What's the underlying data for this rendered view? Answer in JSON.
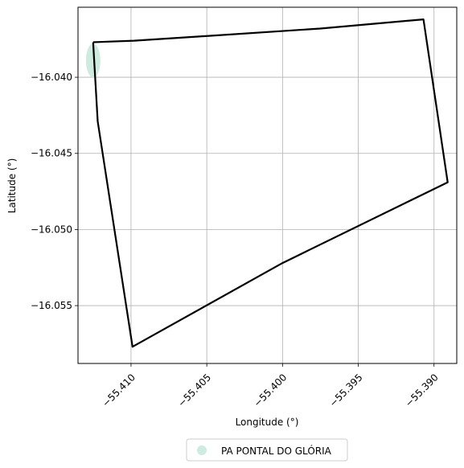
{
  "chart_data": {
    "type": "map",
    "xlabel": "Longitude (°)",
    "ylabel": "Latitude (°)",
    "xlim": [
      -55.4135,
      -55.3885
    ],
    "ylim": [
      -16.0588,
      -16.0354
    ],
    "xticks": [
      -55.41,
      -55.405,
      -55.4,
      -55.395,
      -55.39
    ],
    "xtick_labels": [
      "−55.410",
      "−55.405",
      "−55.400",
      "−55.395",
      "−55.390"
    ],
    "yticks": [
      -16.04,
      -16.045,
      -16.05,
      -16.055
    ],
    "ytick_labels": [
      "−16.040",
      "−16.045",
      "−16.050",
      "−16.055"
    ],
    "grid": true,
    "boundary": [
      [
        -55.4125,
        -16.0377
      ],
      [
        -55.4098,
        -16.0376
      ],
      [
        -55.4052,
        -16.0373
      ],
      [
        -55.3975,
        -16.0368
      ],
      [
        -55.3907,
        -16.0362
      ],
      [
        -55.3891,
        -16.0469
      ],
      [
        -55.4,
        -16.0522
      ],
      [
        -55.4099,
        -16.0577
      ],
      [
        -55.4122,
        -16.0429
      ],
      [
        -55.4125,
        -16.0377
      ]
    ],
    "settlement": {
      "name": "PA PONTAL DO GLÓRIA",
      "lon": -55.4125,
      "lat": -16.0389,
      "color": "#cdebdf"
    },
    "boundary_color": "#000000",
    "legend_position": "bottom-center",
    "legend_entries": [
      "PA PONTAL DO GLÓRIA"
    ]
  }
}
